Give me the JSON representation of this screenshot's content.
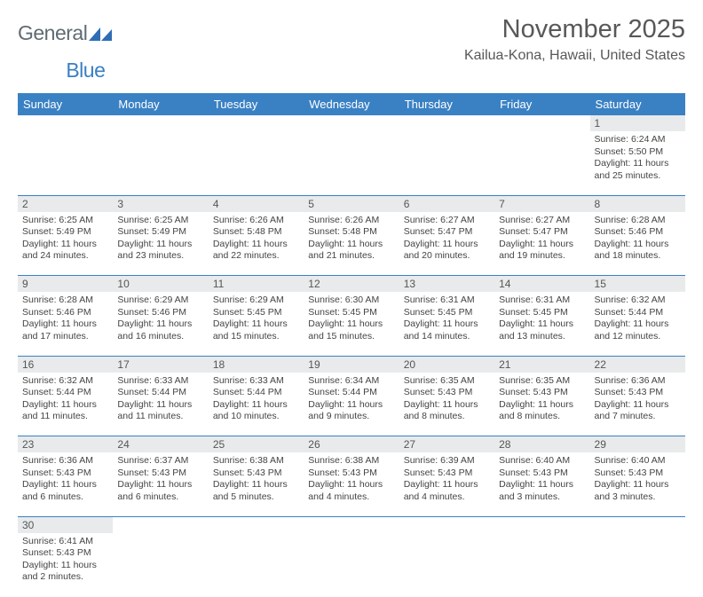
{
  "logo": {
    "word1": "General",
    "word2": "Blue",
    "shape_color": "#2f6db5"
  },
  "title": "November 2025",
  "location": "Kailua-Kona, Hawaii, United States",
  "header_bg": "#3a81c4",
  "header_fg": "#ffffff",
  "daynum_bg": "#e8eaeb",
  "border_color": "#3a81c4",
  "weekdays": [
    "Sunday",
    "Monday",
    "Tuesday",
    "Wednesday",
    "Thursday",
    "Friday",
    "Saturday"
  ],
  "weeks": [
    [
      null,
      null,
      null,
      null,
      null,
      null,
      {
        "n": "1",
        "sr": "6:24 AM",
        "ss": "5:50 PM",
        "dl": "11 hours and 25 minutes."
      }
    ],
    [
      {
        "n": "2",
        "sr": "6:25 AM",
        "ss": "5:49 PM",
        "dl": "11 hours and 24 minutes."
      },
      {
        "n": "3",
        "sr": "6:25 AM",
        "ss": "5:49 PM",
        "dl": "11 hours and 23 minutes."
      },
      {
        "n": "4",
        "sr": "6:26 AM",
        "ss": "5:48 PM",
        "dl": "11 hours and 22 minutes."
      },
      {
        "n": "5",
        "sr": "6:26 AM",
        "ss": "5:48 PM",
        "dl": "11 hours and 21 minutes."
      },
      {
        "n": "6",
        "sr": "6:27 AM",
        "ss": "5:47 PM",
        "dl": "11 hours and 20 minutes."
      },
      {
        "n": "7",
        "sr": "6:27 AM",
        "ss": "5:47 PM",
        "dl": "11 hours and 19 minutes."
      },
      {
        "n": "8",
        "sr": "6:28 AM",
        "ss": "5:46 PM",
        "dl": "11 hours and 18 minutes."
      }
    ],
    [
      {
        "n": "9",
        "sr": "6:28 AM",
        "ss": "5:46 PM",
        "dl": "11 hours and 17 minutes."
      },
      {
        "n": "10",
        "sr": "6:29 AM",
        "ss": "5:46 PM",
        "dl": "11 hours and 16 minutes."
      },
      {
        "n": "11",
        "sr": "6:29 AM",
        "ss": "5:45 PM",
        "dl": "11 hours and 15 minutes."
      },
      {
        "n": "12",
        "sr": "6:30 AM",
        "ss": "5:45 PM",
        "dl": "11 hours and 15 minutes."
      },
      {
        "n": "13",
        "sr": "6:31 AM",
        "ss": "5:45 PM",
        "dl": "11 hours and 14 minutes."
      },
      {
        "n": "14",
        "sr": "6:31 AM",
        "ss": "5:45 PM",
        "dl": "11 hours and 13 minutes."
      },
      {
        "n": "15",
        "sr": "6:32 AM",
        "ss": "5:44 PM",
        "dl": "11 hours and 12 minutes."
      }
    ],
    [
      {
        "n": "16",
        "sr": "6:32 AM",
        "ss": "5:44 PM",
        "dl": "11 hours and 11 minutes."
      },
      {
        "n": "17",
        "sr": "6:33 AM",
        "ss": "5:44 PM",
        "dl": "11 hours and 11 minutes."
      },
      {
        "n": "18",
        "sr": "6:33 AM",
        "ss": "5:44 PM",
        "dl": "11 hours and 10 minutes."
      },
      {
        "n": "19",
        "sr": "6:34 AM",
        "ss": "5:44 PM",
        "dl": "11 hours and 9 minutes."
      },
      {
        "n": "20",
        "sr": "6:35 AM",
        "ss": "5:43 PM",
        "dl": "11 hours and 8 minutes."
      },
      {
        "n": "21",
        "sr": "6:35 AM",
        "ss": "5:43 PM",
        "dl": "11 hours and 8 minutes."
      },
      {
        "n": "22",
        "sr": "6:36 AM",
        "ss": "5:43 PM",
        "dl": "11 hours and 7 minutes."
      }
    ],
    [
      {
        "n": "23",
        "sr": "6:36 AM",
        "ss": "5:43 PM",
        "dl": "11 hours and 6 minutes."
      },
      {
        "n": "24",
        "sr": "6:37 AM",
        "ss": "5:43 PM",
        "dl": "11 hours and 6 minutes."
      },
      {
        "n": "25",
        "sr": "6:38 AM",
        "ss": "5:43 PM",
        "dl": "11 hours and 5 minutes."
      },
      {
        "n": "26",
        "sr": "6:38 AM",
        "ss": "5:43 PM",
        "dl": "11 hours and 4 minutes."
      },
      {
        "n": "27",
        "sr": "6:39 AM",
        "ss": "5:43 PM",
        "dl": "11 hours and 4 minutes."
      },
      {
        "n": "28",
        "sr": "6:40 AM",
        "ss": "5:43 PM",
        "dl": "11 hours and 3 minutes."
      },
      {
        "n": "29",
        "sr": "6:40 AM",
        "ss": "5:43 PM",
        "dl": "11 hours and 3 minutes."
      }
    ],
    [
      {
        "n": "30",
        "sr": "6:41 AM",
        "ss": "5:43 PM",
        "dl": "11 hours and 2 minutes."
      },
      null,
      null,
      null,
      null,
      null,
      null
    ]
  ],
  "labels": {
    "sunrise": "Sunrise:",
    "sunset": "Sunset:",
    "daylight": "Daylight:"
  }
}
